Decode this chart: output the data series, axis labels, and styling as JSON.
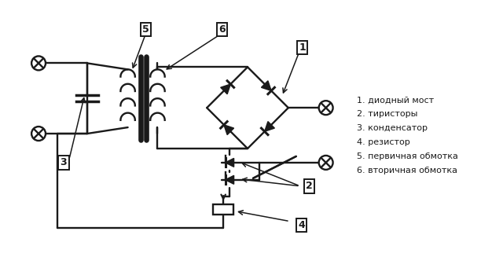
{
  "bg_color": "#ffffff",
  "line_color": "#1a1a1a",
  "line_width": 1.7,
  "legend": [
    "1. диодный мост",
    "2. тиристоры",
    "3. конденсатор",
    "4. резистор",
    "5. первичная обмотка",
    "6. вторичная обмотка"
  ],
  "figsize": [
    6.4,
    3.55
  ],
  "dpi": 100
}
